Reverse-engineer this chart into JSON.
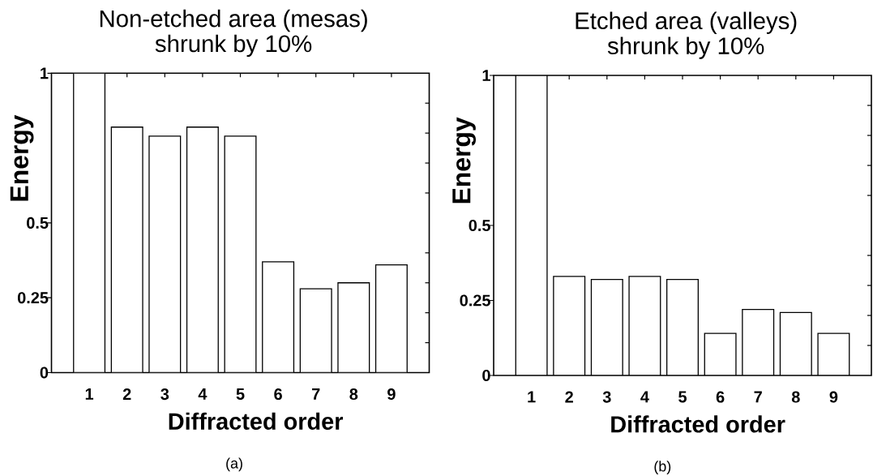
{
  "chart_data": [
    {
      "type": "bar",
      "title": "Non-etched area (mesas)",
      "subtitle": "shrunk by 10%",
      "xlabel": "Diffracted order",
      "ylabel": "Energy",
      "x": [
        1,
        2,
        3,
        4,
        5,
        6,
        7,
        8,
        9
      ],
      "values": [
        1,
        0.82,
        0.79,
        0.82,
        0.79,
        0.37,
        0.28,
        0.3,
        0.36
      ],
      "color": "#ffffff",
      "xlim": [
        0,
        10
      ],
      "xticks": [
        1,
        2,
        3,
        4,
        5,
        6,
        7,
        8,
        9
      ],
      "ylim": [
        0,
        1
      ],
      "yticks": [
        0,
        {
          "value": 0.1,
          "label": null
        },
        {
          "value": 0.2,
          "label": null
        },
        0.25,
        {
          "value": 0.3,
          "label": null
        },
        {
          "value": 0.4,
          "label": null
        },
        0.5,
        {
          "value": 0.6,
          "label": null
        },
        {
          "value": 0.7,
          "label": null
        },
        {
          "value": 0.8,
          "label": null
        },
        {
          "value": 0.9,
          "label": null
        },
        1
      ],
      "annotations": [
        "(a)"
      ]
    },
    {
      "type": "bar",
      "title": "Etched area (valleys)",
      "subtitle": "shrunk by 10%",
      "xlabel": "Diffracted order",
      "ylabel": "Energy",
      "x": [
        1,
        2,
        3,
        4,
        5,
        6,
        7,
        8,
        9
      ],
      "values": [
        1,
        0.33,
        0.32,
        0.33,
        0.32,
        0.14,
        0.22,
        0.21,
        0.14
      ],
      "color": "#ffffff",
      "xlim": [
        0,
        10
      ],
      "xticks": [
        1,
        2,
        3,
        4,
        5,
        6,
        7,
        8,
        9
      ],
      "ylim": [
        0,
        1
      ],
      "yticks": [
        0,
        {
          "value": 0.1,
          "label": null
        },
        {
          "value": 0.2,
          "label": null
        },
        0.25,
        {
          "value": 0.3,
          "label": null
        },
        {
          "value": 0.4,
          "label": null
        },
        0.5,
        {
          "value": 0.6,
          "label": null
        },
        {
          "value": 0.7,
          "label": null
        },
        {
          "value": 0.8,
          "label": null
        },
        {
          "value": 0.9,
          "label": null
        },
        1
      ],
      "annotations": [
        "(b)"
      ]
    }
  ]
}
